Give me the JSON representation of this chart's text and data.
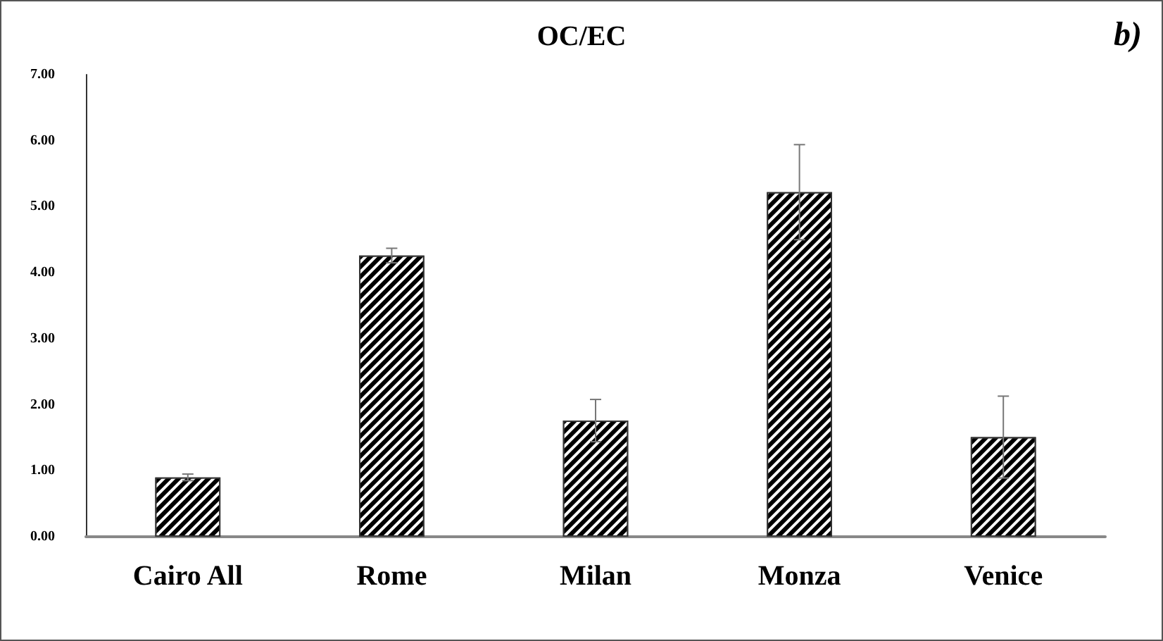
{
  "chart_data": {
    "type": "bar",
    "title": "OC/EC",
    "annotations": [
      "b)"
    ],
    "categories": [
      "Cairo All",
      "Rome",
      "Milan",
      "Monza",
      "Venice"
    ],
    "values": [
      0.9,
      4.26,
      1.76,
      5.22,
      1.51
    ],
    "errors": [
      0.05,
      0.11,
      0.32,
      0.72,
      0.62
    ],
    "color": "#000000",
    "ylim": [
      0,
      7
    ],
    "yticks": [
      {
        "value": 0,
        "label": "0.00"
      },
      {
        "value": 1,
        "label": "1.00"
      },
      {
        "value": 2,
        "label": "2.00"
      },
      {
        "value": 3,
        "label": "3.00"
      },
      {
        "value": 4,
        "label": "4.00"
      },
      {
        "value": 5,
        "label": "5.00"
      },
      {
        "value": 6,
        "label": "6.00"
      },
      {
        "value": 7,
        "label": "7.00"
      }
    ],
    "grid": false
  }
}
